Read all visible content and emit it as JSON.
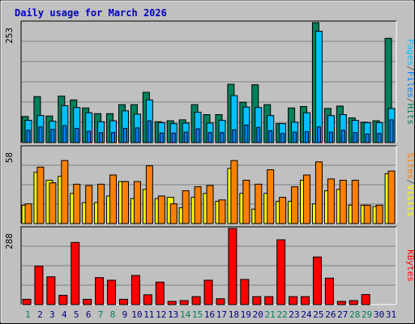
{
  "chart_data": [
    {
      "type": "bar",
      "title": "Daily usage for March 2026",
      "ymax_label": "253",
      "ylim": [
        0,
        253
      ],
      "legend": [
        {
          "text": "Pages",
          "color": "#00c0ff"
        },
        {
          "text": "/",
          "color": "#606060"
        },
        {
          "text": "Files",
          "color": "#0080ff"
        },
        {
          "text": "/",
          "color": "#606060"
        },
        {
          "text": "Hits",
          "color": "#00805c"
        }
      ],
      "series": [
        {
          "name": "Hits",
          "color": "#00805c",
          "values": [
            55,
            97,
            56,
            98,
            90,
            73,
            61,
            61,
            80,
            80,
            106,
            44,
            46,
            48,
            80,
            59,
            59,
            123,
            85,
            122,
            80,
            40,
            73,
            76,
            253,
            72,
            77,
            52,
            43,
            46,
            220
          ]
        },
        {
          "name": "Files",
          "color": "#0080ff",
          "values": [
            26,
            33,
            28,
            36,
            30,
            24,
            21,
            21,
            30,
            31,
            46,
            20,
            20,
            22,
            29,
            21,
            21,
            27,
            37,
            32,
            25,
            19,
            22,
            23,
            33,
            22,
            26,
            21,
            18,
            19,
            48
          ]
        },
        {
          "name": "Pages",
          "color": "#00c0ff",
          "values": [
            47,
            57,
            45,
            78,
            74,
            63,
            44,
            46,
            67,
            60,
            90,
            42,
            40,
            41,
            64,
            41,
            47,
            99,
            75,
            74,
            57,
            40,
            43,
            63,
            235,
            57,
            59,
            47,
            42,
            42,
            72
          ]
        }
      ]
    },
    {
      "type": "bar",
      "ymax_label": "58",
      "ylim": [
        0,
        58
      ],
      "legend": [
        {
          "text": "Sites",
          "color": "#ff8000"
        },
        {
          "text": "/",
          "color": "#606060"
        },
        {
          "text": "Visits",
          "color": "#ffff00"
        }
      ],
      "series": [
        {
          "name": "Visits",
          "color": "#ffff00",
          "values": [
            14,
            39,
            33,
            36,
            23,
            16,
            16,
            21,
            32,
            19,
            26,
            19,
            20,
            12,
            20,
            23,
            17,
            42,
            23,
            11,
            23,
            17,
            17,
            33,
            15,
            25,
            26,
            14,
            14,
            13,
            38
          ]
        },
        {
          "name": "Sites",
          "color": "#ff8000",
          "values": [
            15,
            43,
            31,
            48,
            30,
            29,
            30,
            37,
            32,
            32,
            44,
            21,
            15,
            25,
            28,
            29,
            18,
            48,
            33,
            30,
            41,
            20,
            28,
            37,
            47,
            34,
            33,
            33,
            14,
            14,
            40
          ]
        }
      ]
    },
    {
      "type": "bar",
      "ymax_label": "288",
      "ylim": [
        0,
        288
      ],
      "legend": [
        {
          "text": "KBytes",
          "color": "#ff0000"
        }
      ],
      "series": [
        {
          "name": "KBytes",
          "color": "#ff0000",
          "values": [
            20,
            145,
            105,
            35,
            235,
            20,
            102,
            92,
            20,
            110,
            37,
            85,
            12,
            15,
            30,
            92,
            22,
            288,
            95,
            30,
            30,
            245,
            30,
            30,
            180,
            100,
            12,
            15,
            38,
            0,
            0
          ]
        }
      ]
    }
  ],
  "x_labels": [
    "1",
    "2",
    "3",
    "4",
    "5",
    "6",
    "7",
    "8",
    "9",
    "10",
    "11",
    "12",
    "13",
    "14",
    "15",
    "16",
    "17",
    "18",
    "19",
    "20",
    "21",
    "22",
    "23",
    "24",
    "25",
    "26",
    "27",
    "28",
    "29",
    "30",
    "31"
  ],
  "weekend_days": [
    1,
    7,
    8,
    14,
    15,
    21,
    22,
    28,
    29
  ],
  "weekend_color": "#00805c",
  "weekday_color": "#000080",
  "colors": {
    "background": "#c0c0c0",
    "plot_bg": "#c0c0c0",
    "grid": "#808080",
    "title": "#0000c0"
  }
}
